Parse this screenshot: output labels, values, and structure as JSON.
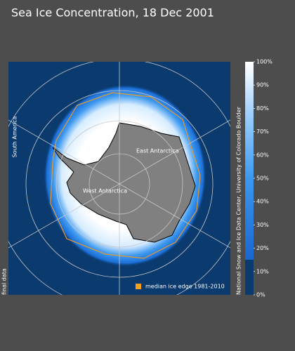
{
  "header": {
    "title": "Sea Ice Concentration, 18 Dec 2001"
  },
  "map": {
    "labels": [
      "East Antarctica",
      "West Antarctica",
      "South America"
    ],
    "legend": "median ice edge 1981-2010",
    "status": "final data",
    "credit": "National Snow and Ice Data Center, University of Colorado Boulder"
  },
  "colorbar": {
    "range": [
      0,
      100
    ],
    "ticks": [
      {
        "value": 0,
        "label": "0%"
      },
      {
        "value": 10,
        "label": "10%"
      },
      {
        "value": 20,
        "label": "20%"
      },
      {
        "value": 30,
        "label": "30%"
      },
      {
        "value": 40,
        "label": "40%"
      },
      {
        "value": 50,
        "label": "50%"
      },
      {
        "value": 60,
        "label": "60%"
      },
      {
        "value": 70,
        "label": "70%"
      },
      {
        "value": 80,
        "label": "80%"
      },
      {
        "value": 90,
        "label": "90%"
      },
      {
        "value": 100,
        "label": "100%"
      }
    ]
  }
}
